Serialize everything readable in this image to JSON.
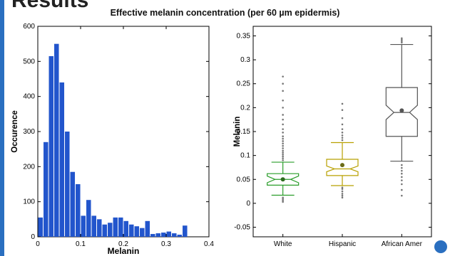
{
  "slide": {
    "heading": "Results",
    "subtitle": "Effective melanin concentration (per 60 µm epidermis)"
  },
  "chart_data": [
    {
      "type": "bar",
      "title": "",
      "xlabel": "Melanin",
      "ylabel": "Occurence",
      "xlim": [
        0,
        0.4
      ],
      "ylim": [
        0,
        600
      ],
      "xticks": [
        "0",
        "0.1",
        "0.2",
        "0.3",
        "0.4"
      ],
      "yticks": [
        "0",
        "100",
        "200",
        "300",
        "400",
        "500",
        "600"
      ],
      "bin_width": 0.0125,
      "bin_centers": [
        0.0063,
        0.0188,
        0.0313,
        0.0438,
        0.0563,
        0.0688,
        0.0813,
        0.0938,
        0.1063,
        0.1188,
        0.1313,
        0.1438,
        0.1563,
        0.1688,
        0.1813,
        0.1938,
        0.2063,
        0.2188,
        0.2313,
        0.2438,
        0.2563,
        0.2688,
        0.2813,
        0.2938,
        0.3063,
        0.3188,
        0.3313,
        0.3438
      ],
      "values": [
        55,
        270,
        515,
        550,
        440,
        300,
        185,
        150,
        60,
        105,
        60,
        50,
        35,
        40,
        55,
        55,
        45,
        35,
        30,
        25,
        45,
        8,
        10,
        12,
        15,
        10,
        6,
        32
      ],
      "color": "#2255cc",
      "grid": false
    },
    {
      "type": "box",
      "title": "",
      "xlabel": "",
      "ylabel": "Melanin",
      "ylim": [
        -0.07,
        0.37
      ],
      "yticks": [
        "-0.05",
        "0",
        "0.05",
        "0.1",
        "0.15",
        "0.2",
        "0.25",
        "0.3",
        "0.35"
      ],
      "categories": [
        "White",
        "Hispanic",
        "African Amer"
      ],
      "boxes": [
        {
          "q1": 0.038,
          "median": 0.05,
          "q3": 0.062,
          "notch_low": 0.043,
          "notch_high": 0.057,
          "whisker_low": 0.017,
          "whisker_high": 0.086,
          "mean": 0.05,
          "color": "#2a9d2a",
          "mean_color": "#2d6b1e",
          "outliers": [
            0.003,
            0.006,
            0.009,
            0.012,
            0.09,
            0.094,
            0.098,
            0.102,
            0.106,
            0.11,
            0.115,
            0.12,
            0.125,
            0.13,
            0.135,
            0.14,
            0.148,
            0.155,
            0.165,
            0.175,
            0.185,
            0.2,
            0.215,
            0.235,
            0.25,
            0.265
          ]
        },
        {
          "q1": 0.058,
          "median": 0.072,
          "q3": 0.092,
          "notch_low": 0.066,
          "notch_high": 0.078,
          "whisker_low": 0.037,
          "whisker_high": 0.127,
          "mean": 0.08,
          "color": "#b8a000",
          "mean_color": "#6b6b18",
          "outliers": [
            0.012,
            0.016,
            0.02,
            0.025,
            0.03,
            0.033,
            0.132,
            0.137,
            0.142,
            0.148,
            0.155,
            0.165,
            0.178,
            0.195,
            0.208
          ]
        },
        {
          "q1": 0.14,
          "median": 0.19,
          "q3": 0.242,
          "notch_low": 0.175,
          "notch_high": 0.205,
          "whisker_low": 0.088,
          "whisker_high": 0.332,
          "mean": 0.194,
          "color": "#555555",
          "mean_color": "#555555",
          "outliers": [
            0.016,
            0.028,
            0.04,
            0.048,
            0.055,
            0.062,
            0.068,
            0.074,
            0.08,
            0.336,
            0.339,
            0.342,
            0.345
          ]
        }
      ],
      "grid": false
    }
  ]
}
